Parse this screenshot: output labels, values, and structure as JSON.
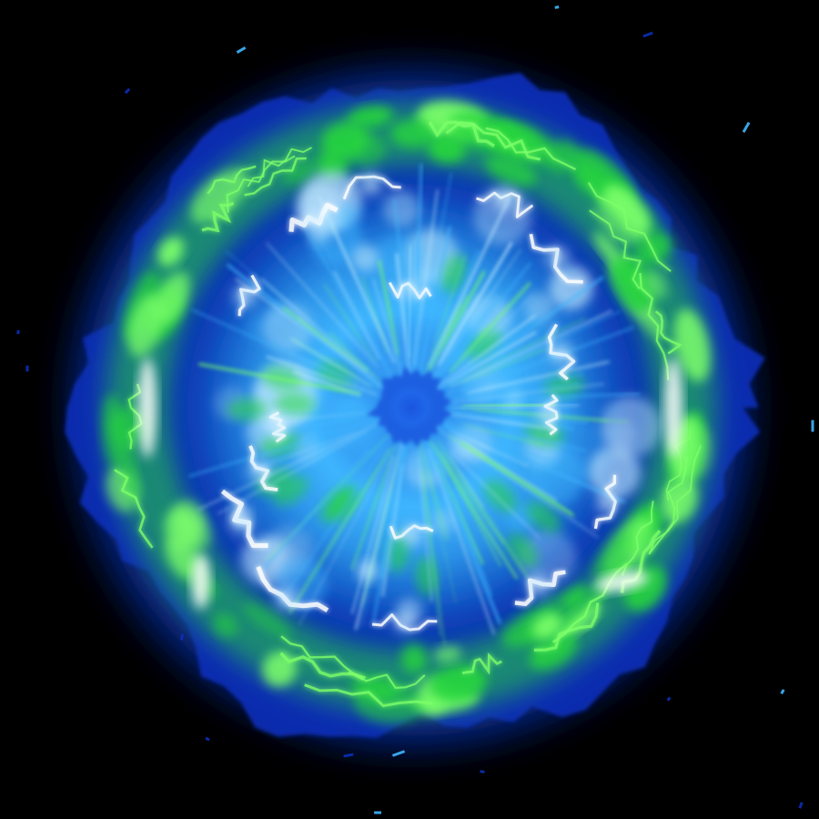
{
  "scene": {
    "subject": "energy-burst",
    "colors": {
      "background": "#000000",
      "outer_halo": "#0a2fb8",
      "deep_blue": "#0b3ea8",
      "ring_green": "#27d63c",
      "bright_green": "#7dff6a",
      "cyan": "#3fb7ff",
      "pale_cyan": "#bfeaff",
      "core_blue": "#1c5fe0",
      "white_hot": "#ffffff"
    }
  }
}
